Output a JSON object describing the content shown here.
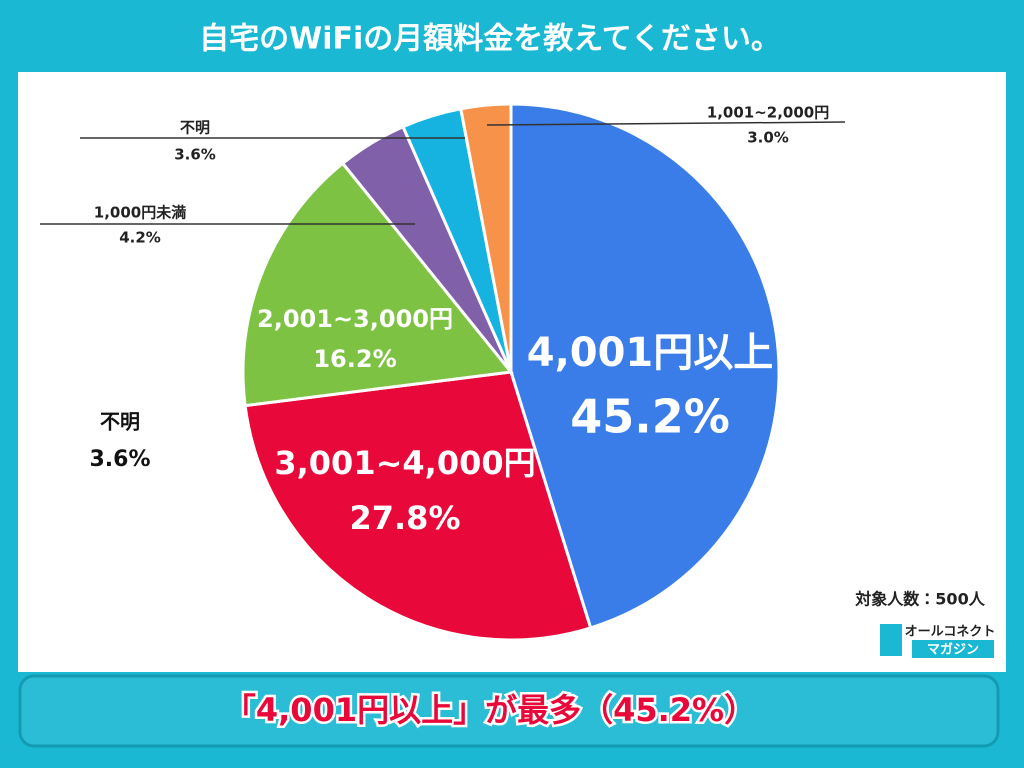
{
  "chart_data": {
    "type": "pie",
    "title": "自宅のWiFiの月額料金を教えてください。",
    "categories": [
      "4,001円以上",
      "3,001~4,000円",
      "2,001~3,000円",
      "1,000円未満",
      "不明",
      "1,001~2,000円"
    ],
    "values": [
      45.2,
      27.8,
      16.2,
      4.2,
      3.6,
      3.0
    ],
    "value_labels": [
      "45.2%",
      "27.8%",
      "16.2%",
      "4.2%",
      "3.6%",
      "3.0%"
    ],
    "colors": [
      "#3a7de8",
      "#e8093a",
      "#7dc243",
      "#8060a8",
      "#17b3e0",
      "#f7924a"
    ],
    "note": "対象人数：500人",
    "summary": "「4,001円以上」が最多（45.2%）"
  },
  "logo": {
    "name": "オールコネクト",
    "sub": "マガジン"
  }
}
